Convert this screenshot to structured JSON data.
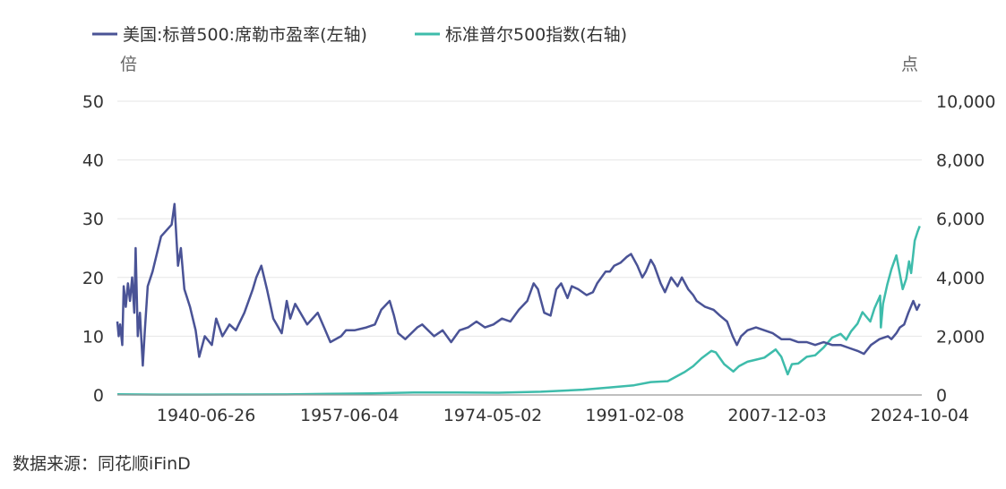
{
  "source": "数据来源：同花顺iFinD",
  "chart_data": {
    "type": "line",
    "legend": {
      "position": "top-left",
      "entries": [
        "美国:标普500:席勒市盈率(左轴)",
        "标准普尔500指数(右轴)"
      ]
    },
    "left_axis": {
      "unit": "倍",
      "range": [
        0,
        50
      ],
      "ticks": [
        "0",
        "10",
        "20",
        "30",
        "40",
        "50"
      ]
    },
    "right_axis": {
      "unit": "点",
      "range": [
        0,
        10000
      ],
      "ticks": [
        "0",
        "2,000",
        "4,000",
        "6,000",
        "8,000",
        "10,000"
      ]
    },
    "x_axis": {
      "range": [
        "1930-01-01",
        "2025-01-01"
      ],
      "tick_labels": [
        "1940-06-26",
        "1957-06-04",
        "1974-05-02",
        "1991-02-08",
        "2007-12-03",
        "2024-10-04"
      ]
    },
    "grid": "horizontal",
    "colors": {
      "cape": "#4a5396",
      "spx": "#3ebcab",
      "grid": "#e6e6e6",
      "axis": "#999999"
    },
    "series": [
      {
        "name": "美国:标普500:席勒市盈率(左轴)",
        "axis": "left",
        "points": [
          [
            "1930-01-01",
            12.5
          ],
          [
            "1930-03-01",
            10.0
          ],
          [
            "1930-05-01",
            12.0
          ],
          [
            "1930-08-01",
            8.5
          ],
          [
            "1930-10-01",
            18.5
          ],
          [
            "1931-01-01",
            15.0
          ],
          [
            "1931-04-01",
            19.0
          ],
          [
            "1931-07-01",
            16.0
          ],
          [
            "1931-10-01",
            20.0
          ],
          [
            "1932-01-01",
            14.0
          ],
          [
            "1932-03-01",
            25.0
          ],
          [
            "1932-06-01",
            10.0
          ],
          [
            "1932-09-01",
            14.0
          ],
          [
            "1933-01-01",
            5.0
          ],
          [
            "1933-04-01",
            11.0
          ],
          [
            "1933-08-01",
            18.5
          ],
          [
            "1934-03-01",
            21.0
          ],
          [
            "1935-03-01",
            27.0
          ],
          [
            "1936-06-01",
            29.0
          ],
          [
            "1936-10-01",
            32.5
          ],
          [
            "1937-03-01",
            22.0
          ],
          [
            "1937-07-01",
            25.0
          ],
          [
            "1937-12-01",
            18.0
          ],
          [
            "1938-08-01",
            15.0
          ],
          [
            "1939-04-01",
            11.0
          ],
          [
            "1939-09-01",
            6.5
          ],
          [
            "1940-05-01",
            10.0
          ],
          [
            "1941-03-01",
            8.5
          ],
          [
            "1941-09-01",
            13.0
          ],
          [
            "1942-06-01",
            10.0
          ],
          [
            "1943-04-01",
            12.0
          ],
          [
            "1944-01-01",
            11.0
          ],
          [
            "1945-01-01",
            14.0
          ],
          [
            "1946-01-01",
            18.0
          ],
          [
            "1946-06-01",
            20.0
          ],
          [
            "1947-01-01",
            22.0
          ],
          [
            "1947-09-01",
            18.0
          ],
          [
            "1948-06-01",
            13.0
          ],
          [
            "1949-06-01",
            10.5
          ],
          [
            "1950-01-01",
            16.0
          ],
          [
            "1950-06-01",
            13.0
          ],
          [
            "1951-01-01",
            15.5
          ],
          [
            "1952-06-01",
            12.0
          ],
          [
            "1953-09-01",
            14.0
          ],
          [
            "1954-06-01",
            11.5
          ],
          [
            "1955-03-01",
            9.0
          ],
          [
            "1956-06-01",
            10.0
          ],
          [
            "1957-01-01",
            11.0
          ],
          [
            "1958-01-01",
            11.0
          ],
          [
            "1959-06-01",
            11.5
          ],
          [
            "1960-06-01",
            12.0
          ],
          [
            "1961-03-01",
            14.5
          ],
          [
            "1962-03-01",
            16.0
          ],
          [
            "1962-09-01",
            13.5
          ],
          [
            "1963-03-01",
            10.5
          ],
          [
            "1964-01-01",
            9.5
          ],
          [
            "1965-06-01",
            11.5
          ],
          [
            "1966-01-01",
            12.0
          ],
          [
            "1967-06-01",
            10.0
          ],
          [
            "1968-06-01",
            11.0
          ],
          [
            "1969-06-01",
            9.0
          ],
          [
            "1970-06-01",
            11.0
          ],
          [
            "1971-06-01",
            11.5
          ],
          [
            "1972-06-01",
            12.5
          ],
          [
            "1973-06-01",
            11.5
          ],
          [
            "1974-06-01",
            12.0
          ],
          [
            "1975-06-01",
            13.0
          ],
          [
            "1976-06-01",
            12.5
          ],
          [
            "1977-06-01",
            14.5
          ],
          [
            "1978-06-01",
            16.0
          ],
          [
            "1979-03-01",
            19.0
          ],
          [
            "1979-09-01",
            18.0
          ],
          [
            "1980-06-01",
            14.0
          ],
          [
            "1981-03-01",
            13.5
          ],
          [
            "1981-11-01",
            18.0
          ],
          [
            "1982-06-01",
            19.0
          ],
          [
            "1983-03-01",
            16.5
          ],
          [
            "1983-09-01",
            18.5
          ],
          [
            "1984-06-01",
            18.0
          ],
          [
            "1985-06-01",
            17.0
          ],
          [
            "1986-03-01",
            17.5
          ],
          [
            "1986-09-01",
            19.0
          ],
          [
            "1987-03-01",
            20.0
          ],
          [
            "1987-09-01",
            21.0
          ],
          [
            "1988-03-01",
            21.0
          ],
          [
            "1988-09-01",
            22.0
          ],
          [
            "1989-06-01",
            22.5
          ],
          [
            "1990-03-01",
            23.5
          ],
          [
            "1990-09-01",
            24.0
          ],
          [
            "1991-06-01",
            22.0
          ],
          [
            "1992-01-01",
            20.0
          ],
          [
            "1992-06-01",
            21.0
          ],
          [
            "1993-01-01",
            23.0
          ],
          [
            "1993-06-01",
            22.0
          ],
          [
            "1994-03-01",
            19.0
          ],
          [
            "1994-09-01",
            17.5
          ],
          [
            "1995-06-01",
            20.0
          ],
          [
            "1996-03-01",
            18.5
          ],
          [
            "1996-09-01",
            20.0
          ],
          [
            "1997-06-01",
            18.0
          ],
          [
            "1998-01-01",
            17.0
          ],
          [
            "1998-06-01",
            16.0
          ],
          [
            "1999-06-01",
            15.0
          ],
          [
            "2000-06-01",
            14.5
          ],
          [
            "2001-03-01",
            13.5
          ],
          [
            "2002-01-01",
            12.5
          ],
          [
            "2002-09-01",
            10.0
          ],
          [
            "2003-03-01",
            8.5
          ],
          [
            "2003-09-01",
            10.0
          ],
          [
            "2004-06-01",
            11.0
          ],
          [
            "2005-06-01",
            11.5
          ],
          [
            "2006-06-01",
            11.0
          ],
          [
            "2007-06-01",
            10.5
          ],
          [
            "2008-06-01",
            9.5
          ],
          [
            "2009-06-01",
            9.5
          ],
          [
            "2010-06-01",
            9.0
          ],
          [
            "2011-06-01",
            9.0
          ],
          [
            "2012-06-01",
            8.5
          ],
          [
            "2013-06-01",
            9.0
          ],
          [
            "2014-06-01",
            8.5
          ],
          [
            "2015-06-01",
            8.5
          ],
          [
            "2016-06-01",
            8.0
          ],
          [
            "2017-06-01",
            7.5
          ],
          [
            "2018-03-01",
            7.0
          ],
          [
            "2019-01-01",
            8.5
          ],
          [
            "2020-01-01",
            9.5
          ],
          [
            "2021-01-01",
            10.0
          ],
          [
            "2021-06-01",
            9.5
          ],
          [
            "2022-01-01",
            10.5
          ],
          [
            "2022-06-01",
            11.5
          ],
          [
            "2022-12-01",
            12.0
          ],
          [
            "2023-06-01",
            14.0
          ],
          [
            "2024-01-01",
            16.0
          ],
          [
            "2024-06-01",
            14.5
          ],
          [
            "2024-10-04",
            15.5
          ]
        ]
      },
      {
        "name": "标准普尔500指数(右轴)",
        "axis": "right",
        "points": [
          [
            "1930-01-01",
            20
          ],
          [
            "1935-01-01",
            12
          ],
          [
            "1940-01-01",
            12
          ],
          [
            "1945-01-01",
            15
          ],
          [
            "1950-01-01",
            17
          ],
          [
            "1955-01-01",
            36
          ],
          [
            "1960-01-01",
            56
          ],
          [
            "1965-01-01",
            86
          ],
          [
            "1970-01-01",
            85
          ],
          [
            "1975-01-01",
            75
          ],
          [
            "1980-01-01",
            110
          ],
          [
            "1985-01-01",
            180
          ],
          [
            "1988-01-01",
            250
          ],
          [
            "1991-01-01",
            330
          ],
          [
            "1993-01-01",
            440
          ],
          [
            "1995-01-01",
            470
          ],
          [
            "1997-01-01",
            780
          ],
          [
            "1998-01-01",
            980
          ],
          [
            "1999-01-01",
            1250
          ],
          [
            "2000-03-01",
            1500
          ],
          [
            "2000-09-01",
            1450
          ],
          [
            "2001-09-01",
            1050
          ],
          [
            "2002-10-01",
            800
          ],
          [
            "2003-06-01",
            980
          ],
          [
            "2004-06-01",
            1130
          ],
          [
            "2005-06-01",
            1200
          ],
          [
            "2006-06-01",
            1270
          ],
          [
            "2007-10-01",
            1550
          ],
          [
            "2008-06-01",
            1300
          ],
          [
            "2009-03-01",
            700
          ],
          [
            "2009-09-01",
            1050
          ],
          [
            "2010-06-01",
            1070
          ],
          [
            "2011-06-01",
            1300
          ],
          [
            "2012-06-01",
            1350
          ],
          [
            "2013-06-01",
            1620
          ],
          [
            "2014-06-01",
            1950
          ],
          [
            "2015-06-01",
            2080
          ],
          [
            "2016-02-01",
            1880
          ],
          [
            "2016-09-01",
            2170
          ],
          [
            "2017-06-01",
            2430
          ],
          [
            "2018-01-01",
            2820
          ],
          [
            "2018-12-01",
            2500
          ],
          [
            "2019-06-01",
            2950
          ],
          [
            "2020-02-01",
            3380
          ],
          [
            "2020-03-01",
            2300
          ],
          [
            "2020-06-01",
            3100
          ],
          [
            "2020-12-01",
            3750
          ],
          [
            "2021-06-01",
            4280
          ],
          [
            "2022-01-01",
            4750
          ],
          [
            "2022-10-01",
            3600
          ],
          [
            "2023-03-01",
            3950
          ],
          [
            "2023-07-01",
            4550
          ],
          [
            "2023-10-01",
            4150
          ],
          [
            "2024-03-01",
            5250
          ],
          [
            "2024-07-01",
            5550
          ],
          [
            "2024-10-04",
            5750
          ]
        ]
      }
    ]
  }
}
